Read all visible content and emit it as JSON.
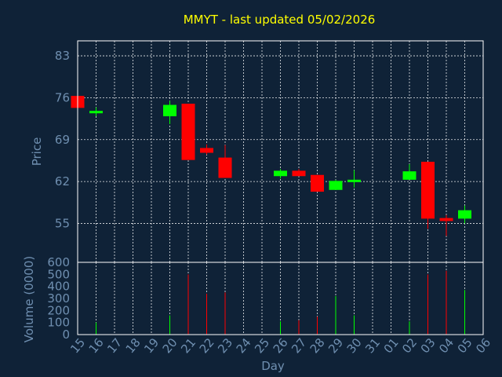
{
  "chart_data": {
    "type": "candlestick",
    "title": "MMYT - last updated 05/02/2026",
    "ylabel": "Price",
    "ylabel_volume": "Volume (0000)",
    "xlabel": "Day",
    "price_ticks": [
      55,
      62,
      69,
      76,
      83
    ],
    "price_ylim": [
      48.5,
      85.5
    ],
    "volume_ticks": [
      0,
      100,
      200,
      300,
      400,
      500,
      600
    ],
    "volume_ylim": [
      0,
      600
    ],
    "x_tick_labels": [
      "15",
      "16",
      "17",
      "18",
      "19",
      "20",
      "21",
      "22",
      "23",
      "24",
      "25",
      "26",
      "27",
      "28",
      "29",
      "30",
      "31",
      "01",
      "02",
      "03",
      "04",
      "05",
      "06"
    ],
    "candles": [
      {
        "day": "15",
        "open": 76.3,
        "high": 76.5,
        "low": 74.1,
        "close": 74.3,
        "volume": 0
      },
      {
        "day": "16",
        "open": 73.4,
        "high": 74.4,
        "low": 72.9,
        "close": 73.8,
        "volume": 100
      },
      {
        "day": "20",
        "open": 72.9,
        "high": 75.5,
        "low": 71.6,
        "close": 74.8,
        "volume": 160
      },
      {
        "day": "21",
        "open": 75.0,
        "high": 75.0,
        "low": 65.6,
        "close": 65.6,
        "volume": 500
      },
      {
        "day": "22",
        "open": 67.6,
        "high": 68.2,
        "low": 66.5,
        "close": 66.8,
        "volume": 340
      },
      {
        "day": "23",
        "open": 66.0,
        "high": 68.1,
        "low": 62.6,
        "close": 62.6,
        "volume": 350
      },
      {
        "day": "26",
        "open": 62.9,
        "high": 64.1,
        "low": 62.5,
        "close": 63.8,
        "volume": 110
      },
      {
        "day": "27",
        "open": 63.8,
        "high": 64.1,
        "low": 62.9,
        "close": 62.9,
        "volume": 120
      },
      {
        "day": "28",
        "open": 63.1,
        "high": 63.1,
        "low": 60.3,
        "close": 60.3,
        "volume": 150
      },
      {
        "day": "29",
        "open": 60.6,
        "high": 62.3,
        "low": 60.6,
        "close": 62.1,
        "volume": 320
      },
      {
        "day": "30",
        "open": 61.9,
        "high": 63.9,
        "low": 61.0,
        "close": 62.3,
        "volume": 160
      },
      {
        "day": "02",
        "open": 62.3,
        "high": 64.9,
        "low": 62.3,
        "close": 63.7,
        "volume": 110
      },
      {
        "day": "03",
        "open": 65.3,
        "high": 65.3,
        "low": 54.1,
        "close": 55.8,
        "volume": 500
      },
      {
        "day": "04",
        "open": 55.9,
        "high": 56.4,
        "low": 52.9,
        "close": 55.4,
        "volume": 530
      },
      {
        "day": "05",
        "open": 55.8,
        "high": 58.0,
        "low": 55.0,
        "close": 57.2,
        "volume": 370
      }
    ],
    "colors": {
      "background": "#0f2237",
      "up": "#00ff00",
      "down": "#ff0000",
      "title": "#ffff00",
      "text": "#6f8fb0",
      "grid": "#ffffff"
    },
    "grid": true
  }
}
